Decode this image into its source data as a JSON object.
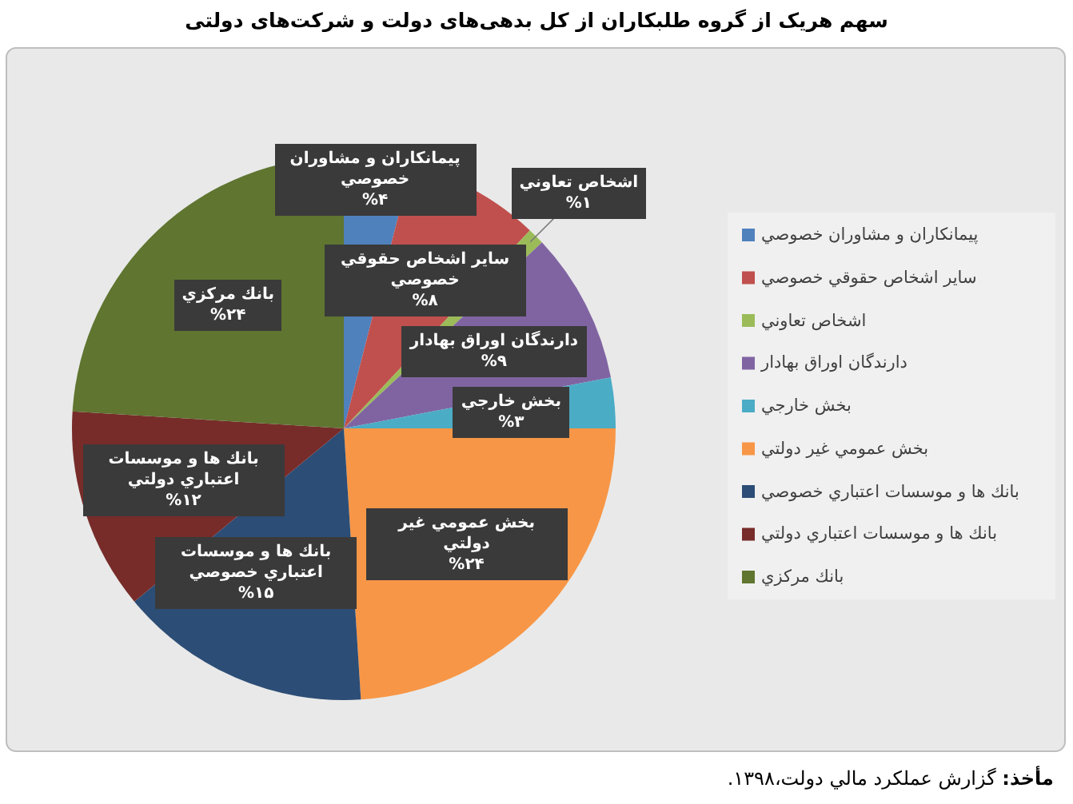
{
  "chart_data": {
    "type": "pie",
    "title": "سهم هریک از گروه طلبکاران از کل بدهی‌های دولت و شرکت‌های دولتی",
    "categories": [
      "پيمانكاران و مشاوران خصوصي",
      "ساير اشخاص حقوقي خصوصي",
      "اشخاص تعاوني",
      "دارندگان اوراق بهادار",
      "بخش خارجي",
      "بخش عمومي غير دولتي",
      "بانك ها و موسسات اعتباري خصوصي",
      "بانك ها و موسسات اعتباري دولتي",
      "بانك مركزي"
    ],
    "values": [
      4,
      8,
      1,
      9,
      3,
      24,
      15,
      12,
      24
    ],
    "colors": [
      "#4f81bd",
      "#c0504d",
      "#9bbb59",
      "#8064a2",
      "#4bacc6",
      "#f79646",
      "#2c4d75",
      "#772c2a",
      "#5f7530"
    ],
    "value_labels": [
      "%۴",
      "%۸",
      "%۱",
      "%۹",
      "%۳",
      "%۲۴",
      "%۱۵",
      "%۱۲",
      "%۲۴"
    ],
    "legend": "right",
    "annotations": [
      "**مأخذ:** گزارش عملکرد مالي دولت،۱۳۹۸."
    ]
  }
}
